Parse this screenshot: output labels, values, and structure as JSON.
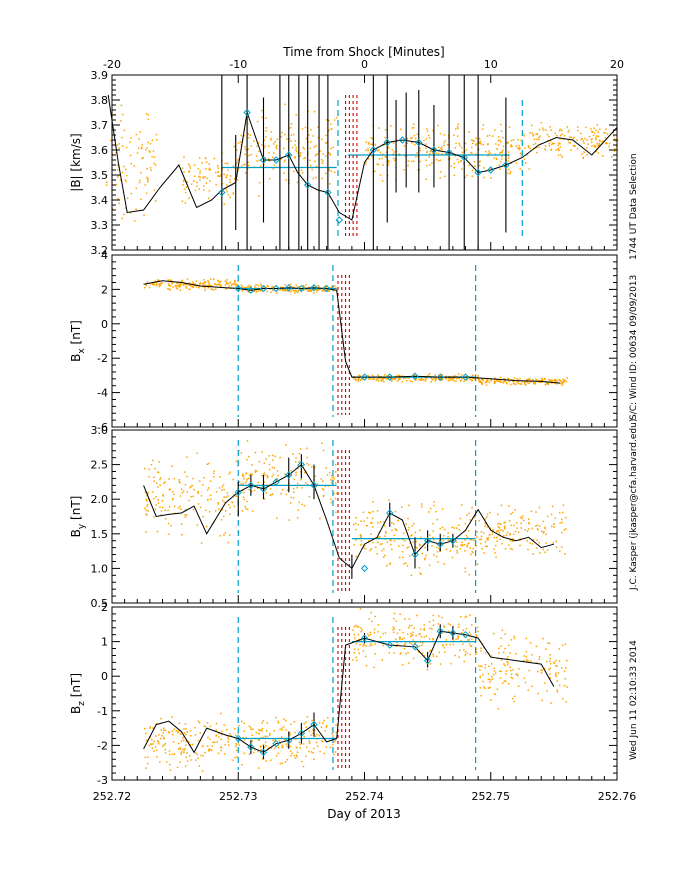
{
  "figure": {
    "top_axis_title": "Time from Shock [Minutes]",
    "bottom_axis_title": "Day of 2013",
    "side_texts": [
      "1744 UT Data Selection",
      "S/C: Wind ID: 00634 09/09/2013",
      "J.C. Kasper (jkasper@cfa.harvard.edu)",
      "Wed Jun 11 02:10:33 2014"
    ],
    "top_ticks": [
      "-20",
      "-10",
      "0",
      "10",
      "20"
    ],
    "bottom_ticks": [
      "252.72",
      "252.73",
      "252.74",
      "252.75",
      "252.76"
    ],
    "colors": {
      "points": "#ffa500",
      "fit": "#00a0c8",
      "shock": "#cc0000",
      "line": "#000000"
    }
  },
  "chart_data": [
    {
      "type": "line",
      "panel": "B",
      "ylabel_html": "|B| [km/s]",
      "ylabel": "|B| [km/s]",
      "ylim": [
        3.2,
        3.9
      ],
      "yticks": [
        "3.2",
        "3.3",
        "3.4",
        "3.5",
        "3.6",
        "3.7",
        "3.8",
        "3.9"
      ],
      "xlim": [
        252.72,
        252.76
      ],
      "line": {
        "x": [
          252.7197,
          252.7205,
          252.7212,
          252.7225,
          252.7238,
          252.7253,
          252.7267,
          252.7279,
          252.7287,
          252.7298,
          252.7307,
          252.732,
          252.733,
          252.734,
          252.7347,
          252.7355,
          252.7363,
          252.7371,
          252.738,
          252.739,
          252.74,
          252.7407,
          252.7418,
          252.743,
          252.7443,
          252.7455,
          252.7467,
          252.7479,
          252.749,
          252.75,
          252.7512,
          252.7525,
          252.7538,
          252.7552,
          252.7565,
          252.758,
          252.76
        ],
        "y": [
          3.82,
          3.55,
          3.35,
          3.36,
          3.45,
          3.54,
          3.37,
          3.4,
          3.44,
          3.47,
          3.75,
          3.56,
          3.56,
          3.58,
          3.51,
          3.46,
          3.44,
          3.43,
          3.35,
          3.32,
          3.55,
          3.6,
          3.63,
          3.64,
          3.63,
          3.6,
          3.59,
          3.57,
          3.51,
          3.52,
          3.54,
          3.57,
          3.62,
          3.65,
          3.64,
          3.58,
          3.69
        ]
      },
      "markers": {
        "x": [
          252.7287,
          252.7307,
          252.732,
          252.733,
          252.734,
          252.7355,
          252.7371,
          252.738,
          252.7407,
          252.7418,
          252.743,
          252.7443,
          252.7455,
          252.7467,
          252.7479,
          252.749,
          252.75,
          252.7512
        ],
        "y": [
          3.43,
          3.75,
          3.56,
          3.56,
          3.58,
          3.46,
          3.43,
          3.32,
          3.6,
          3.63,
          3.64,
          3.63,
          3.6,
          3.59,
          3.57,
          3.51,
          3.52,
          3.54
        ]
      },
      "errorbars": [
        {
          "x": 252.7287,
          "lo": 3.2,
          "hi": 3.9
        },
        {
          "x": 252.7298,
          "lo": 3.28,
          "hi": 3.66
        },
        {
          "x": 252.7307,
          "lo": 3.2,
          "hi": 3.9
        },
        {
          "x": 252.732,
          "lo": 3.31,
          "hi": 3.81
        },
        {
          "x": 252.7333,
          "lo": 3.2,
          "hi": 3.9
        },
        {
          "x": 252.734,
          "lo": 3.2,
          "hi": 3.9
        },
        {
          "x": 252.7348,
          "lo": 3.2,
          "hi": 3.9
        },
        {
          "x": 252.7355,
          "lo": 3.2,
          "hi": 3.9
        },
        {
          "x": 252.7364,
          "lo": 3.2,
          "hi": 3.9
        },
        {
          "x": 252.7371,
          "lo": 3.2,
          "hi": 3.9
        },
        {
          "x": 252.7407,
          "lo": 3.2,
          "hi": 3.9
        },
        {
          "x": 252.7418,
          "lo": 3.31,
          "hi": 3.9
        },
        {
          "x": 252.7425,
          "lo": 3.43,
          "hi": 3.8
        },
        {
          "x": 252.7433,
          "lo": 3.45,
          "hi": 3.83
        },
        {
          "x": 252.7443,
          "lo": 3.43,
          "hi": 3.84
        },
        {
          "x": 252.7455,
          "lo": 3.45,
          "hi": 3.78
        },
        {
          "x": 252.7467,
          "lo": 3.2,
          "hi": 3.9
        },
        {
          "x": 252.7479,
          "lo": 3.2,
          "hi": 3.9
        },
        {
          "x": 252.749,
          "lo": 3.2,
          "hi": 3.9
        },
        {
          "x": 252.7512,
          "lo": 3.27,
          "hi": 3.81
        }
      ],
      "fit_segments": [
        {
          "x0": 252.7287,
          "x1": 252.7378,
          "y": 3.53
        },
        {
          "x0": 252.7387,
          "x1": 252.7515,
          "y": 3.58
        }
      ],
      "fit_dashes": [
        252.7379,
        252.7525
      ],
      "shock_dashes": [
        252.7385,
        252.7388,
        252.7391,
        252.7394
      ],
      "scatter_segments": [
        [
          252.7195,
          252.7235,
          3.32,
          3.8
        ],
        [
          252.7255,
          252.73,
          3.4,
          3.6
        ],
        [
          252.7298,
          252.7378,
          3.45,
          3.75
        ],
        [
          252.74,
          252.753,
          3.5,
          3.7
        ],
        [
          252.753,
          252.76,
          3.58,
          3.7
        ]
      ]
    },
    {
      "type": "line",
      "panel": "Bx",
      "ylabel": "Bx [nT]",
      "ylabel_main": "B",
      "ylabel_sub": "x",
      "ylabel_tail": " [nT]",
      "ylim": [
        -6,
        4
      ],
      "yticks": [
        "-6",
        "-4",
        "-2",
        "0",
        "2",
        "4"
      ],
      "xlim": [
        252.72,
        252.76
      ],
      "line": {
        "x": [
          252.7225,
          252.724,
          252.7255,
          252.727,
          252.729,
          252.73,
          252.731,
          252.732,
          252.733,
          252.734,
          252.735,
          252.736,
          252.737,
          252.7378,
          252.7385,
          252.739,
          252.74,
          252.742,
          252.744,
          252.746,
          252.748,
          252.75,
          252.752,
          252.754,
          252.7555
        ],
        "y": [
          2.3,
          2.5,
          2.4,
          2.2,
          2.1,
          2.05,
          1.95,
          2.05,
          2.05,
          2.1,
          2.05,
          2.1,
          2.05,
          1.95,
          -2.2,
          -3.1,
          -3.1,
          -3.1,
          -3.05,
          -3.1,
          -3.1,
          -3.2,
          -3.3,
          -3.35,
          -3.45
        ]
      },
      "markers": {
        "x": [
          252.73,
          252.731,
          252.732,
          252.733,
          252.734,
          252.735,
          252.736,
          252.737,
          252.74,
          252.742,
          252.744,
          252.746,
          252.748
        ],
        "y": [
          2.05,
          1.95,
          2.05,
          2.05,
          2.1,
          2.05,
          2.1,
          2.05,
          -3.1,
          -3.1,
          -3.05,
          -3.1,
          -3.1
        ]
      },
      "errorbars": [],
      "fit_segments": [
        {
          "x0": 252.73,
          "x1": 252.7378,
          "y": 2.05
        },
        {
          "x0": 252.739,
          "x1": 252.7488,
          "y": -3.1
        }
      ],
      "fit_dashes": [
        252.73,
        252.7375,
        252.7488
      ],
      "shock_dashes": [
        252.7379,
        252.7382,
        252.7385,
        252.7388
      ],
      "scatter_segments": [
        [
          252.7225,
          252.73,
          2.0,
          2.6
        ],
        [
          252.73,
          252.7378,
          1.85,
          2.3
        ],
        [
          252.739,
          252.749,
          -3.3,
          -2.9
        ],
        [
          252.749,
          252.756,
          -3.5,
          -3.1
        ]
      ]
    },
    {
      "type": "line",
      "panel": "By",
      "ylabel": "By [nT]",
      "ylabel_main": "B",
      "ylabel_sub": "y",
      "ylabel_tail": " [nT]",
      "ylim": [
        0.5,
        3.0
      ],
      "yticks": [
        "0.5",
        "1.0",
        "1.5",
        "2.0",
        "2.5",
        "3.0"
      ],
      "xlim": [
        252.72,
        252.76
      ],
      "line": {
        "x": [
          252.7225,
          252.7235,
          252.7245,
          252.7255,
          252.7265,
          252.7275,
          252.729,
          252.73,
          252.731,
          252.732,
          252.733,
          252.734,
          252.735,
          252.736,
          252.737,
          252.738,
          252.739,
          252.74,
          252.741,
          252.742,
          252.743,
          252.744,
          252.745,
          252.746,
          252.747,
          252.748,
          252.749,
          252.75,
          252.751,
          252.752,
          252.753,
          252.754,
          252.755
        ],
        "y": [
          2.2,
          1.75,
          1.78,
          1.8,
          1.9,
          1.5,
          1.95,
          2.1,
          2.2,
          2.15,
          2.25,
          2.35,
          2.5,
          2.2,
          1.7,
          1.15,
          1.0,
          1.35,
          1.45,
          1.8,
          1.7,
          1.2,
          1.4,
          1.35,
          1.4,
          1.55,
          1.85,
          1.55,
          1.45,
          1.4,
          1.45,
          1.3,
          1.35
        ]
      },
      "markers": {
        "x": [
          252.73,
          252.731,
          252.732,
          252.733,
          252.734,
          252.735,
          252.736,
          252.74,
          252.742,
          252.744,
          252.745,
          252.746,
          252.747
        ],
        "y": [
          2.1,
          2.2,
          2.15,
          2.25,
          2.35,
          2.5,
          2.2,
          1.0,
          1.8,
          1.2,
          1.4,
          1.35,
          1.4
        ]
      },
      "errorbars": [
        {
          "x": 252.73,
          "lo": 1.75,
          "hi": 2.25
        },
        {
          "x": 252.731,
          "lo": 2.05,
          "hi": 2.35
        },
        {
          "x": 252.732,
          "lo": 2.0,
          "hi": 2.35
        },
        {
          "x": 252.734,
          "lo": 2.1,
          "hi": 2.6
        },
        {
          "x": 252.735,
          "lo": 2.3,
          "hi": 2.65
        },
        {
          "x": 252.736,
          "lo": 2.0,
          "hi": 2.5
        },
        {
          "x": 252.739,
          "lo": 0.85,
          "hi": 1.2
        },
        {
          "x": 252.742,
          "lo": 1.6,
          "hi": 1.95
        },
        {
          "x": 252.744,
          "lo": 1.0,
          "hi": 1.45
        },
        {
          "x": 252.745,
          "lo": 1.25,
          "hi": 1.55
        },
        {
          "x": 252.746,
          "lo": 1.25,
          "hi": 1.5
        },
        {
          "x": 252.747,
          "lo": 1.3,
          "hi": 1.5
        }
      ],
      "fit_segments": [
        {
          "x0": 252.73,
          "x1": 252.7378,
          "y": 2.2
        },
        {
          "x0": 252.739,
          "x1": 252.7488,
          "y": 1.43
        }
      ],
      "fit_dashes": [
        252.73,
        252.7375,
        252.7488
      ],
      "shock_dashes": [
        252.7379,
        252.7382,
        252.7385,
        252.7388
      ],
      "scatter_segments": [
        [
          252.7225,
          252.73,
          1.5,
          2.6
        ],
        [
          252.73,
          252.7378,
          1.8,
          2.8
        ],
        [
          252.739,
          252.749,
          1.0,
          1.9
        ],
        [
          252.749,
          252.756,
          1.2,
          1.9
        ]
      ]
    },
    {
      "type": "line",
      "panel": "Bz",
      "ylabel": "Bz [nT]",
      "ylabel_main": "B",
      "ylabel_sub": "z",
      "ylabel_tail": " [nT]",
      "ylim": [
        -3,
        2
      ],
      "yticks": [
        "-3",
        "-2",
        "-1",
        "0",
        "1",
        "2"
      ],
      "xlim": [
        252.72,
        252.76
      ],
      "line": {
        "x": [
          252.7225,
          252.7235,
          252.7245,
          252.7255,
          252.7265,
          252.7275,
          252.729,
          252.73,
          252.731,
          252.732,
          252.733,
          252.734,
          252.735,
          252.736,
          252.737,
          252.7378,
          252.7385,
          252.74,
          252.742,
          252.744,
          252.745,
          252.746,
          252.747,
          252.748,
          252.749,
          252.75,
          252.752,
          252.754,
          252.755
        ],
        "y": [
          -2.1,
          -1.4,
          -1.3,
          -1.6,
          -2.2,
          -1.5,
          -1.7,
          -1.8,
          -2.05,
          -2.2,
          -1.95,
          -1.85,
          -1.65,
          -1.4,
          -1.9,
          -1.8,
          0.9,
          1.1,
          0.9,
          0.85,
          0.45,
          1.3,
          1.25,
          1.2,
          1.1,
          0.55,
          0.45,
          0.35,
          -0.3
        ]
      },
      "markers": {
        "x": [
          252.73,
          252.731,
          252.732,
          252.733,
          252.734,
          252.735,
          252.736,
          252.74,
          252.742,
          252.744,
          252.745,
          252.746,
          252.747,
          252.748
        ],
        "y": [
          -1.8,
          -2.05,
          -2.2,
          -1.95,
          -1.85,
          -1.65,
          -1.4,
          1.1,
          0.9,
          0.85,
          0.45,
          1.3,
          1.25,
          1.2
        ]
      },
      "errorbars": [
        {
          "x": 252.731,
          "lo": -2.25,
          "hi": -1.85
        },
        {
          "x": 252.732,
          "lo": -2.4,
          "hi": -2.0
        },
        {
          "x": 252.734,
          "lo": -2.1,
          "hi": -1.6
        },
        {
          "x": 252.735,
          "lo": -1.95,
          "hi": -1.35
        },
        {
          "x": 252.736,
          "lo": -1.75,
          "hi": -1.05
        },
        {
          "x": 252.74,
          "lo": 0.95,
          "hi": 1.25
        },
        {
          "x": 252.745,
          "lo": 0.25,
          "hi": 0.7
        },
        {
          "x": 252.746,
          "lo": 1.1,
          "hi": 1.5
        },
        {
          "x": 252.747,
          "lo": 1.05,
          "hi": 1.45
        }
      ],
      "fit_segments": [
        {
          "x0": 252.73,
          "x1": 252.7378,
          "y": -1.8
        },
        {
          "x0": 252.739,
          "x1": 252.7488,
          "y": 1.0
        }
      ],
      "fit_dashes": [
        252.73,
        252.7375,
        252.7488
      ],
      "shock_dashes": [
        252.7379,
        252.7382,
        252.7385,
        252.7388
      ],
      "scatter_segments": [
        [
          252.7225,
          252.73,
          -2.6,
          -1.2
        ],
        [
          252.73,
          252.7378,
          -2.5,
          -1.2
        ],
        [
          252.739,
          252.749,
          0.4,
          1.8
        ],
        [
          252.749,
          252.756,
          -0.8,
          1.2
        ]
      ]
    }
  ]
}
